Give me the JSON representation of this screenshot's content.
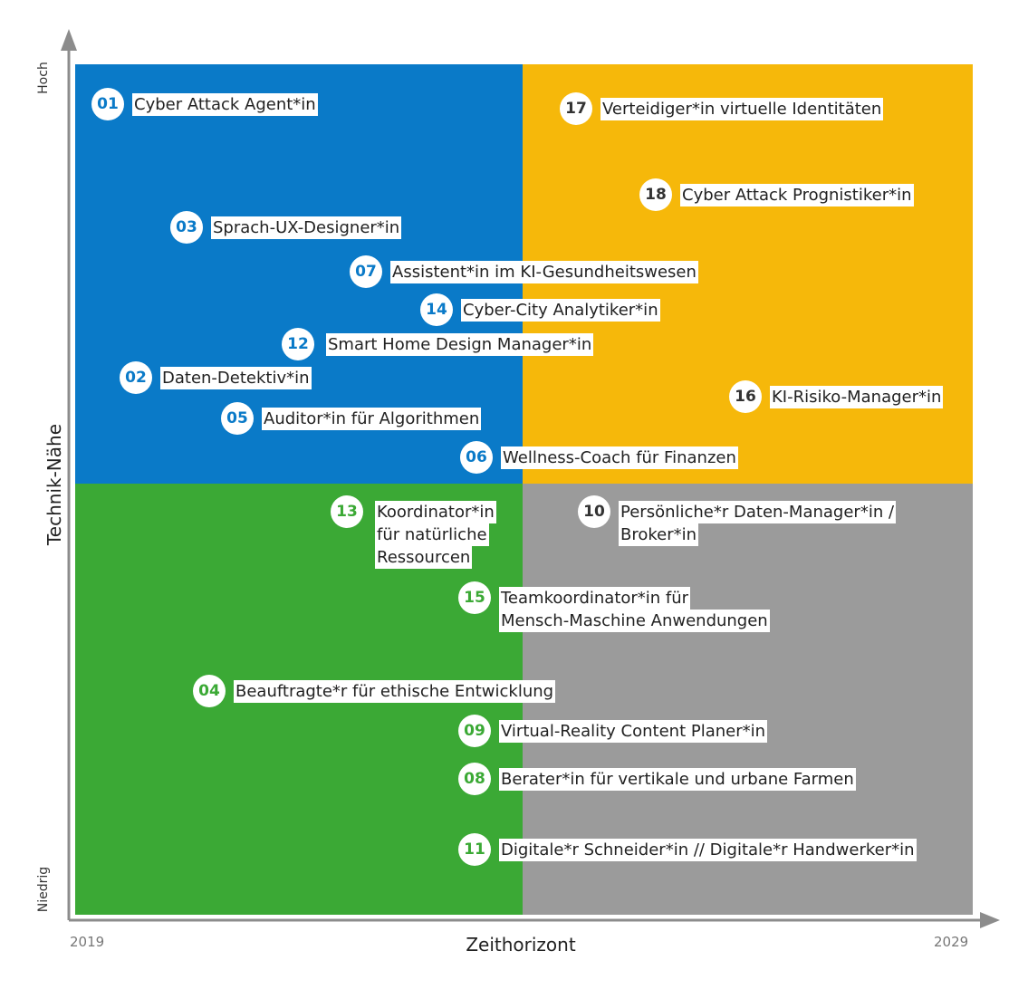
{
  "colors": {
    "top_left": "#0A7AC8",
    "top_right": "#F6B80A",
    "bottom_left": "#3BA935",
    "bottom_right": "#9B9B9B",
    "axis": "#8C8C8C"
  },
  "axes": {
    "y_title": "Technik-Nähe",
    "y_high": "Hoch",
    "y_low": "Niedrig",
    "x_title": "Zeithorizont",
    "x_start": "2019",
    "x_end": "2029"
  },
  "jobs": [
    {
      "num": "01",
      "lines": [
        "Cyber Attack Agent*in"
      ],
      "color": "#0A7AC8"
    },
    {
      "num": "17",
      "lines": [
        "Verteidiger*in virtuelle Identitäten"
      ],
      "color": "#333333"
    },
    {
      "num": "18",
      "lines": [
        "Cyber Attack Prognistiker*in"
      ],
      "color": "#333333"
    },
    {
      "num": "03",
      "lines": [
        "Sprach-UX-Designer*in"
      ],
      "color": "#0A7AC8"
    },
    {
      "num": "07",
      "lines": [
        "Assistent*in im KI-Gesundheitswesen"
      ],
      "color": "#0A7AC8"
    },
    {
      "num": "14",
      "lines": [
        "Cyber-City Analytiker*in"
      ],
      "color": "#0A7AC8"
    },
    {
      "num": "12",
      "lines": [
        "Smart Home Design Manager*in"
      ],
      "color": "#0A7AC8"
    },
    {
      "num": "02",
      "lines": [
        "Daten-Detektiv*in"
      ],
      "color": "#0A7AC8"
    },
    {
      "num": "16",
      "lines": [
        "KI-Risiko-Manager*in"
      ],
      "color": "#333333"
    },
    {
      "num": "05",
      "lines": [
        "Auditor*in für Algorithmen"
      ],
      "color": "#0A7AC8"
    },
    {
      "num": "06",
      "lines": [
        "Wellness-Coach für Finanzen"
      ],
      "color": "#0A7AC8"
    },
    {
      "num": "13",
      "lines": [
        "Koordinator*in",
        "für natürliche",
        "Ressourcen"
      ],
      "color": "#3BA935"
    },
    {
      "num": "10",
      "lines": [
        "Persönliche*r Daten-Manager*in /",
        "Broker*in"
      ],
      "color": "#333333"
    },
    {
      "num": "15",
      "lines": [
        "Teamkoordinator*in für",
        "Mensch-Maschine Anwendungen"
      ],
      "color": "#3BA935"
    },
    {
      "num": "04",
      "lines": [
        "Beauftragte*r für ethische Entwicklung"
      ],
      "color": "#3BA935"
    },
    {
      "num": "09",
      "lines": [
        "Virtual-Reality Content Planer*in"
      ],
      "color": "#3BA935"
    },
    {
      "num": "08",
      "lines": [
        "Berater*in für vertikale und urbane Farmen"
      ],
      "color": "#3BA935"
    },
    {
      "num": "11",
      "lines": [
        "Digitale*r Schneider*in // Digitale*r Handwerker*in"
      ],
      "color": "#3BA935"
    }
  ]
}
